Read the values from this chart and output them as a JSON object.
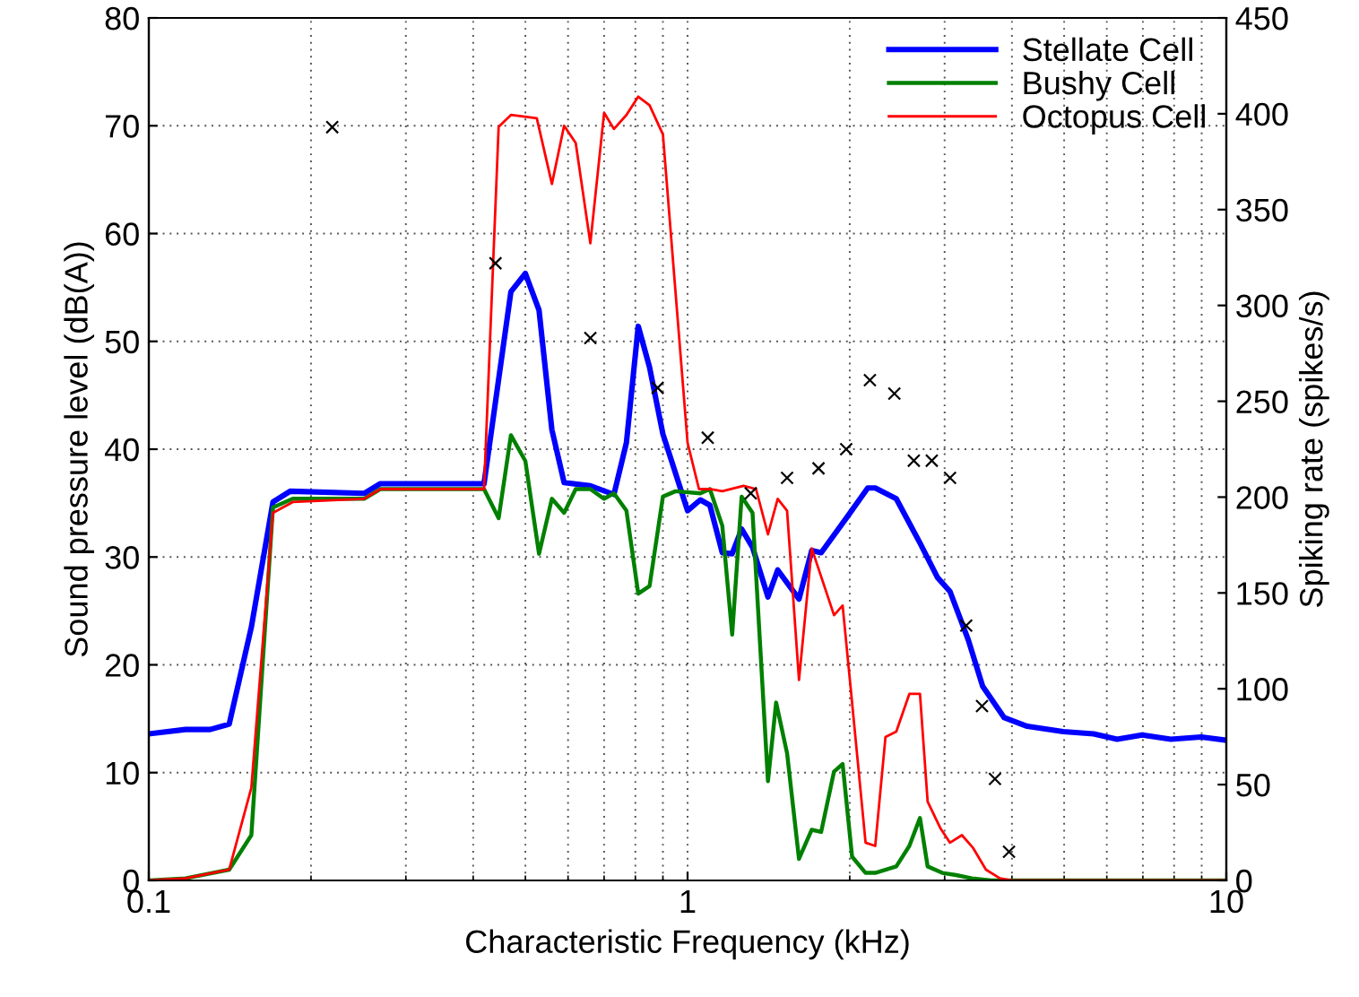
{
  "chart_data": {
    "type": "line",
    "xlabel": "Characteristic Frequency (kHz)",
    "ylabel": "Sound pressure level (dB(A))",
    "y2label": "Spiking rate (spikes/s)",
    "log": "x",
    "xlim": [
      0.1,
      10
    ],
    "xticks": [
      0.1,
      1,
      10
    ],
    "ylim": [
      0,
      80
    ],
    "yticks": [
      0,
      10,
      20,
      30,
      40,
      50,
      60,
      70,
      80
    ],
    "y2lim": [
      0,
      450
    ],
    "y2ticks": [
      0,
      50,
      100,
      150,
      200,
      250,
      300,
      350,
      400,
      450
    ],
    "grid": true,
    "legend": "top right",
    "series": [
      {
        "name": "Stellate Cell",
        "color": "#0000ff",
        "x": [
          0.1,
          0.117,
          0.13,
          0.141,
          0.155,
          0.17,
          0.183,
          0.251,
          0.269,
          0.419,
          0.47,
          0.5,
          0.53,
          0.56,
          0.59,
          0.66,
          0.73,
          0.77,
          0.81,
          0.85,
          0.9,
          1.0,
          1.056,
          1.1,
          1.16,
          1.21,
          1.26,
          1.32,
          1.41,
          1.47,
          1.61,
          1.7,
          1.77,
          1.99,
          2.16,
          2.23,
          2.44,
          2.7,
          2.91,
          3.07,
          3.32,
          3.53,
          3.87,
          4.27,
          4.98,
          5.67,
          6.27,
          6.98,
          7.89,
          8.98,
          10
        ],
        "values": [
          13.6,
          14.0,
          14.0,
          14.5,
          23.5,
          35.1,
          36.1,
          35.9,
          36.8,
          36.8,
          54.6,
          56.3,
          52.9,
          41.8,
          36.9,
          36.6,
          35.8,
          40.6,
          51.4,
          47.6,
          41.4,
          34.3,
          35.3,
          34.8,
          30.4,
          30.3,
          32.6,
          30.9,
          26.3,
          28.8,
          26.1,
          30.6,
          30.4,
          33.9,
          36.4,
          36.4,
          35.4,
          31.3,
          28.1,
          26.8,
          22.3,
          18.0,
          15.1,
          14.3,
          13.8,
          13.6,
          13.1,
          13.5,
          13.1,
          13.3,
          13.0
        ]
      },
      {
        "name": "Bushy Cell",
        "color": "#008000",
        "x": [
          0.1,
          0.117,
          0.141,
          0.155,
          0.17,
          0.185,
          0.251,
          0.269,
          0.419,
          0.446,
          0.47,
          0.5,
          0.53,
          0.56,
          0.59,
          0.62,
          0.66,
          0.7,
          0.73,
          0.77,
          0.81,
          0.85,
          0.9,
          0.95,
          1.056,
          1.1,
          1.16,
          1.21,
          1.26,
          1.32,
          1.41,
          1.46,
          1.53,
          1.61,
          1.7,
          1.77,
          1.87,
          1.94,
          2.02,
          2.14,
          2.23,
          2.44,
          2.58,
          2.7,
          2.79,
          2.97,
          3.15,
          3.37,
          3.66,
          10
        ],
        "values": [
          0,
          0.2,
          1.0,
          4.2,
          34.6,
          35.4,
          35.4,
          36.3,
          36.3,
          33.6,
          41.3,
          38.9,
          30.3,
          35.4,
          34.1,
          36.3,
          36.3,
          35.4,
          35.9,
          34.3,
          26.6,
          27.3,
          35.6,
          36.1,
          35.9,
          36.3,
          32.9,
          22.8,
          35.6,
          34.1,
          9.2,
          16.5,
          11.8,
          2.0,
          4.7,
          4.5,
          10.1,
          10.8,
          2.2,
          0.7,
          0.7,
          1.3,
          3.2,
          5.8,
          1.3,
          0.7,
          0.5,
          0.2,
          0,
          0
        ]
      },
      {
        "name": "Octopus Cell",
        "color": "#ff0000",
        "x": [
          0.1,
          0.117,
          0.141,
          0.155,
          0.17,
          0.185,
          0.251,
          0.269,
          0.419,
          0.446,
          0.47,
          0.525,
          0.56,
          0.59,
          0.62,
          0.66,
          0.7,
          0.73,
          0.77,
          0.81,
          0.85,
          0.9,
          1.0,
          1.05,
          1.1,
          1.16,
          1.27,
          1.34,
          1.41,
          1.47,
          1.53,
          1.61,
          1.7,
          1.87,
          1.94,
          2.02,
          2.14,
          2.23,
          2.33,
          2.44,
          2.58,
          2.7,
          2.79,
          2.95,
          3.07,
          3.23,
          3.39,
          3.58,
          3.8,
          4.01,
          10
        ],
        "values": [
          0,
          0.2,
          1.0,
          8.6,
          34.1,
          35.1,
          35.4,
          36.3,
          36.3,
          69.9,
          71.0,
          70.7,
          64.6,
          70.0,
          68.4,
          59.1,
          71.2,
          69.7,
          71.0,
          72.7,
          71.9,
          69.2,
          40.6,
          36.3,
          36.3,
          36.1,
          36.6,
          36.3,
          32.1,
          35.4,
          34.3,
          18.6,
          30.8,
          24.6,
          25.5,
          16.5,
          3.5,
          3.2,
          13.3,
          13.8,
          17.3,
          17.3,
          7.3,
          4.8,
          3.5,
          4.2,
          3.0,
          1.0,
          0.2,
          0,
          0
        ]
      },
      {
        "type": "scatter",
        "axis": "y2",
        "color": "#000000",
        "marker": "cross",
        "x": [
          0.219,
          0.44,
          0.66,
          0.88,
          1.09,
          1.31,
          1.53,
          1.75,
          1.97,
          2.18,
          2.42,
          2.63,
          2.84,
          3.07,
          3.29,
          3.52,
          3.72,
          3.95
        ],
        "values": [
          393,
          322,
          283,
          257,
          231,
          202,
          210,
          215,
          225,
          261,
          254,
          219,
          219,
          210,
          133,
          91,
          53,
          15
        ]
      }
    ]
  }
}
